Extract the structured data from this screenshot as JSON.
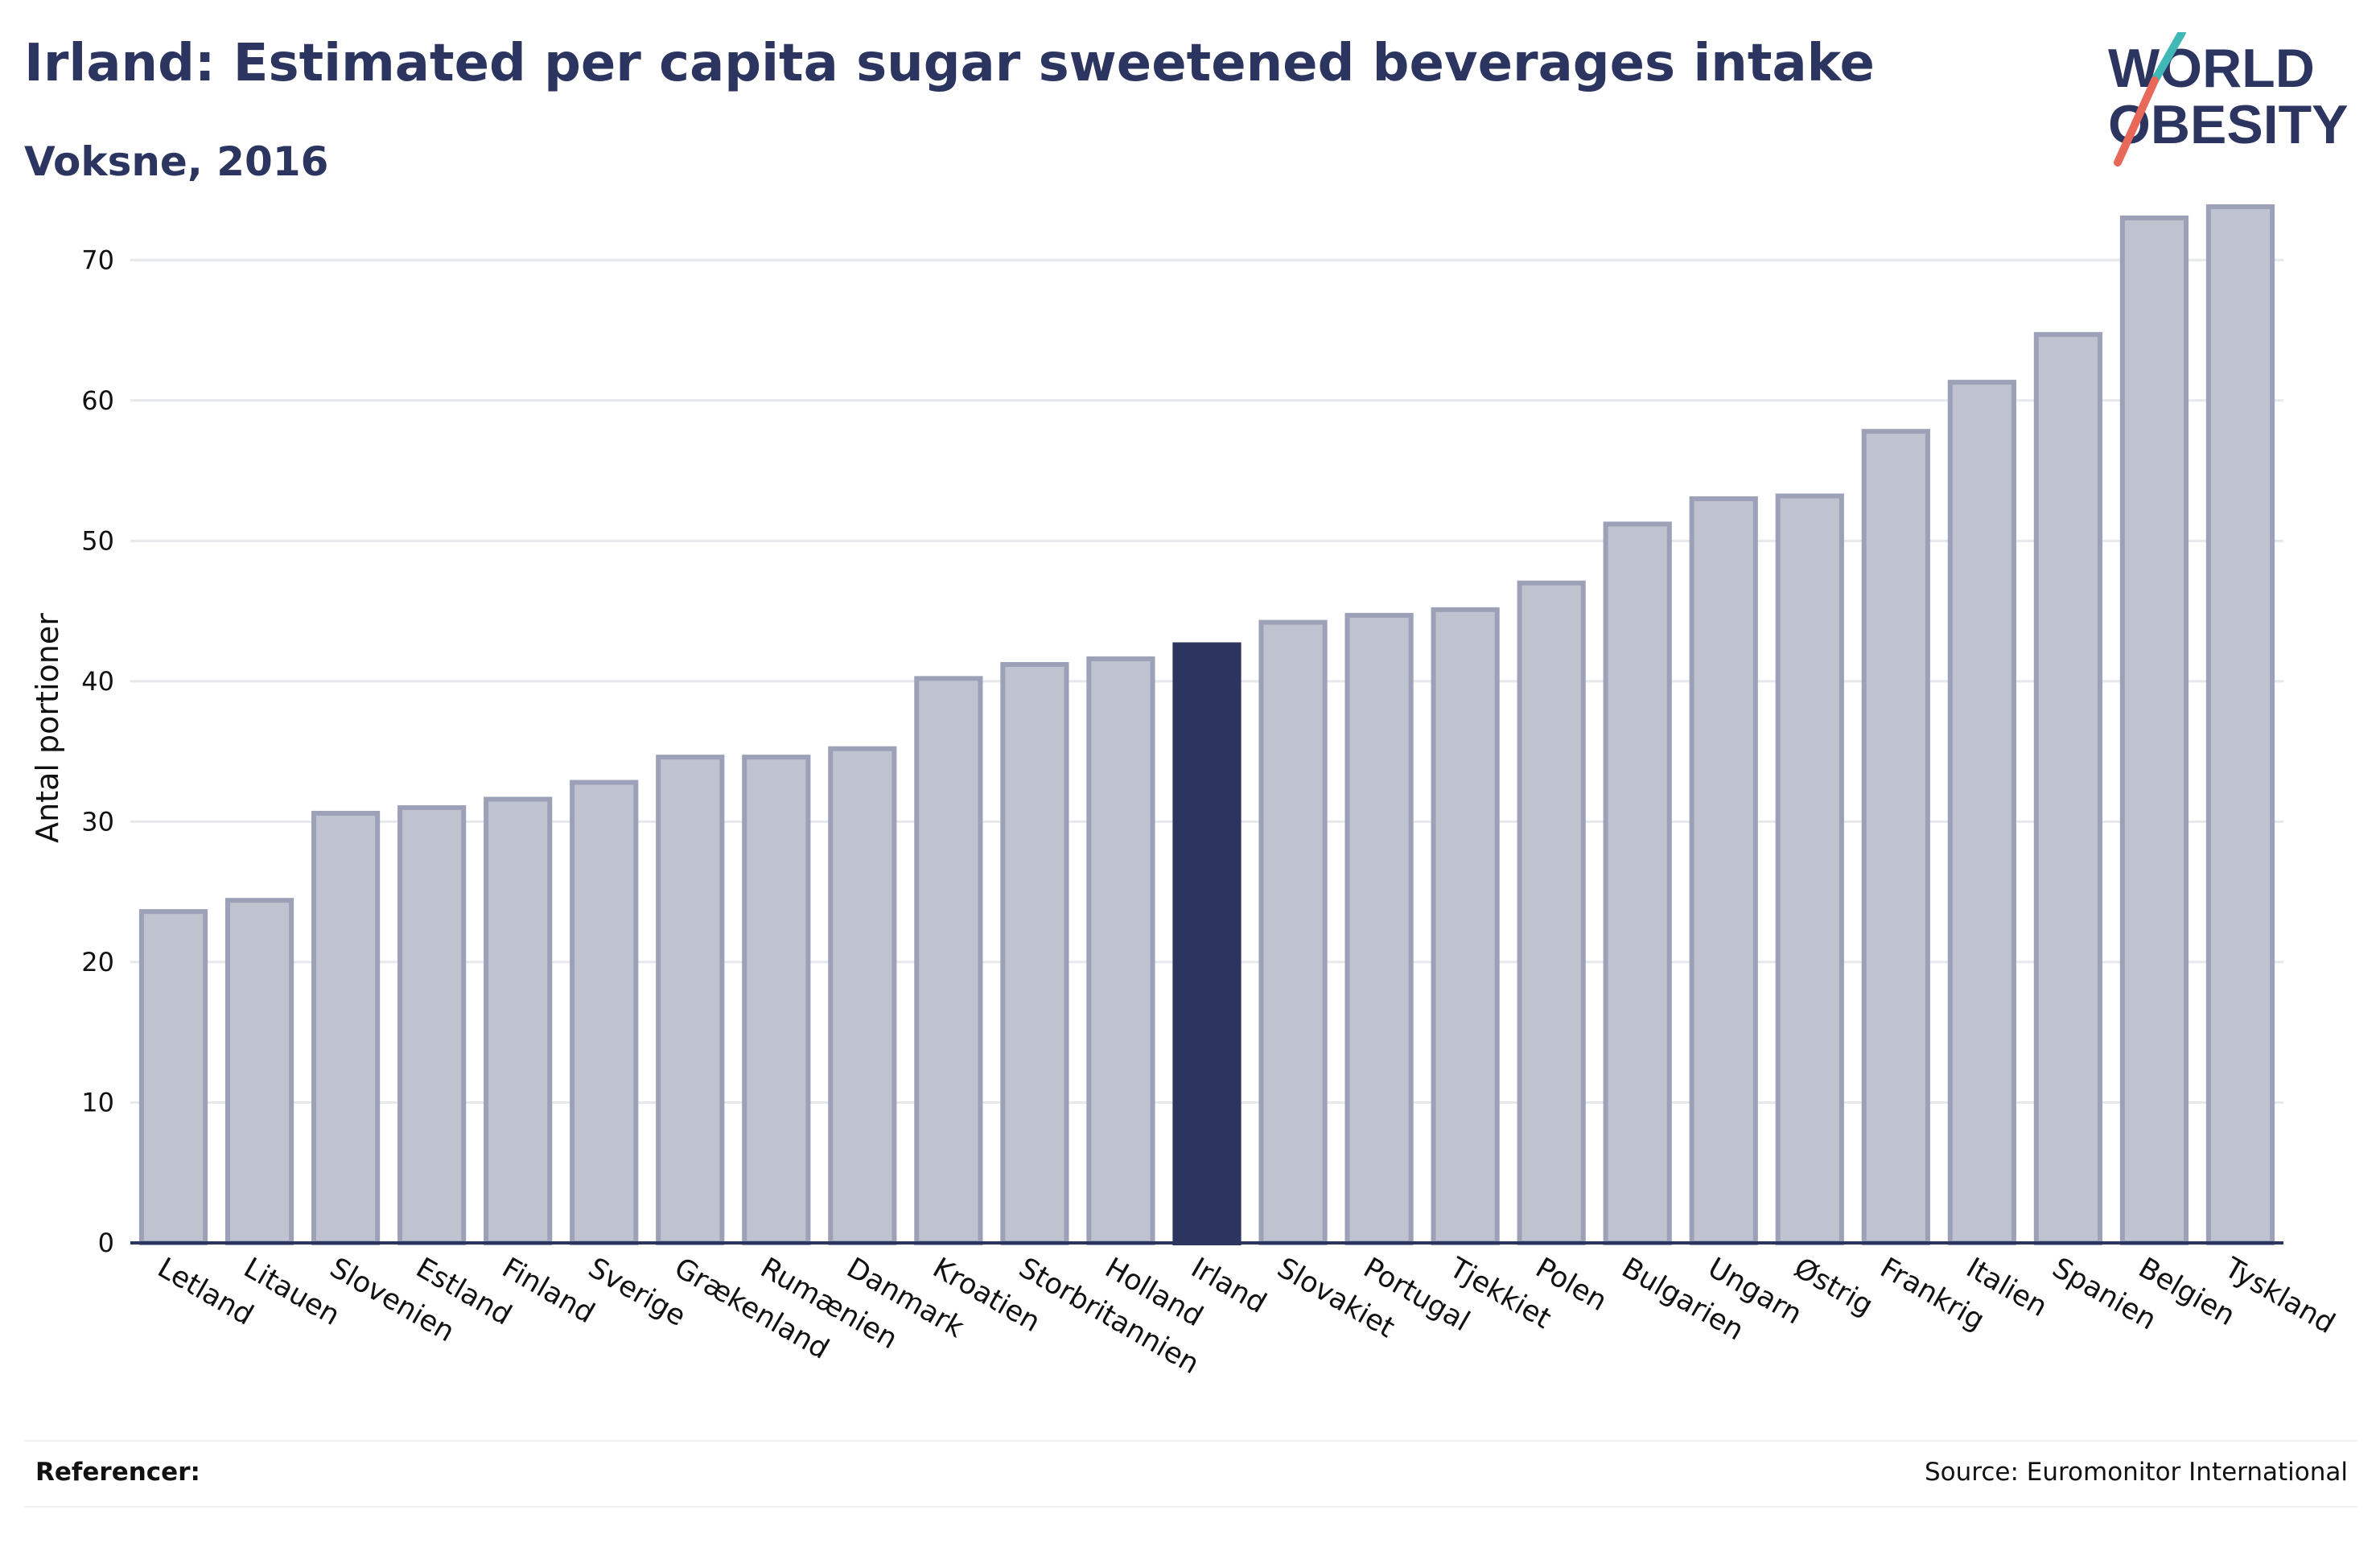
{
  "header": {
    "title": "Irland: Estimated per capita sugar sweetened beverages intake",
    "subtitle": "Voksne, 2016"
  },
  "logo": {
    "line1": "WORLD",
    "line2": "OBESITY",
    "text_color": "#2b3560",
    "slash_colors": [
      "#3fb8b6",
      "#e8695a"
    ]
  },
  "footer": {
    "references_label": "Referencer:",
    "source": "Source: Euromonitor International"
  },
  "colors": {
    "highlight_bar": "#2b3560",
    "bar_fill": "#bfc2cf",
    "bar_stroke": "#9da1b8",
    "grid": "#e6e8ec",
    "axis": "#2b3560",
    "text": "#111111"
  },
  "chart_data": {
    "type": "bar",
    "title": "Irland: Estimated per capita sugar sweetened beverages intake",
    "subtitle": "Voksne, 2016",
    "xlabel": "",
    "ylabel": "Antal portioner",
    "ylim": [
      0,
      75
    ],
    "yticks": [
      0,
      10,
      20,
      30,
      40,
      50,
      60,
      70
    ],
    "grid": true,
    "highlight": "Irland",
    "categories": [
      "Letland",
      "Litauen",
      "Slovenien",
      "Estland",
      "Finland",
      "Sverige",
      "Grækenland",
      "Rumænien",
      "Danmark",
      "Kroatien",
      "Storbritannien",
      "Holland",
      "Irland",
      "Slovakiet",
      "Portugal",
      "Tjekkiet",
      "Polen",
      "Bulgarien",
      "Ungarn",
      "Østrig",
      "Frankrig",
      "Italien",
      "Spanien",
      "Belgien",
      "Tyskland"
    ],
    "values": [
      23.6,
      24.4,
      30.6,
      31.0,
      31.6,
      32.8,
      34.6,
      34.6,
      35.2,
      40.2,
      41.2,
      41.6,
      42.6,
      44.2,
      44.7,
      45.1,
      47.0,
      51.2,
      53.0,
      53.2,
      57.8,
      61.3,
      64.7,
      73.0,
      73.8
    ]
  }
}
